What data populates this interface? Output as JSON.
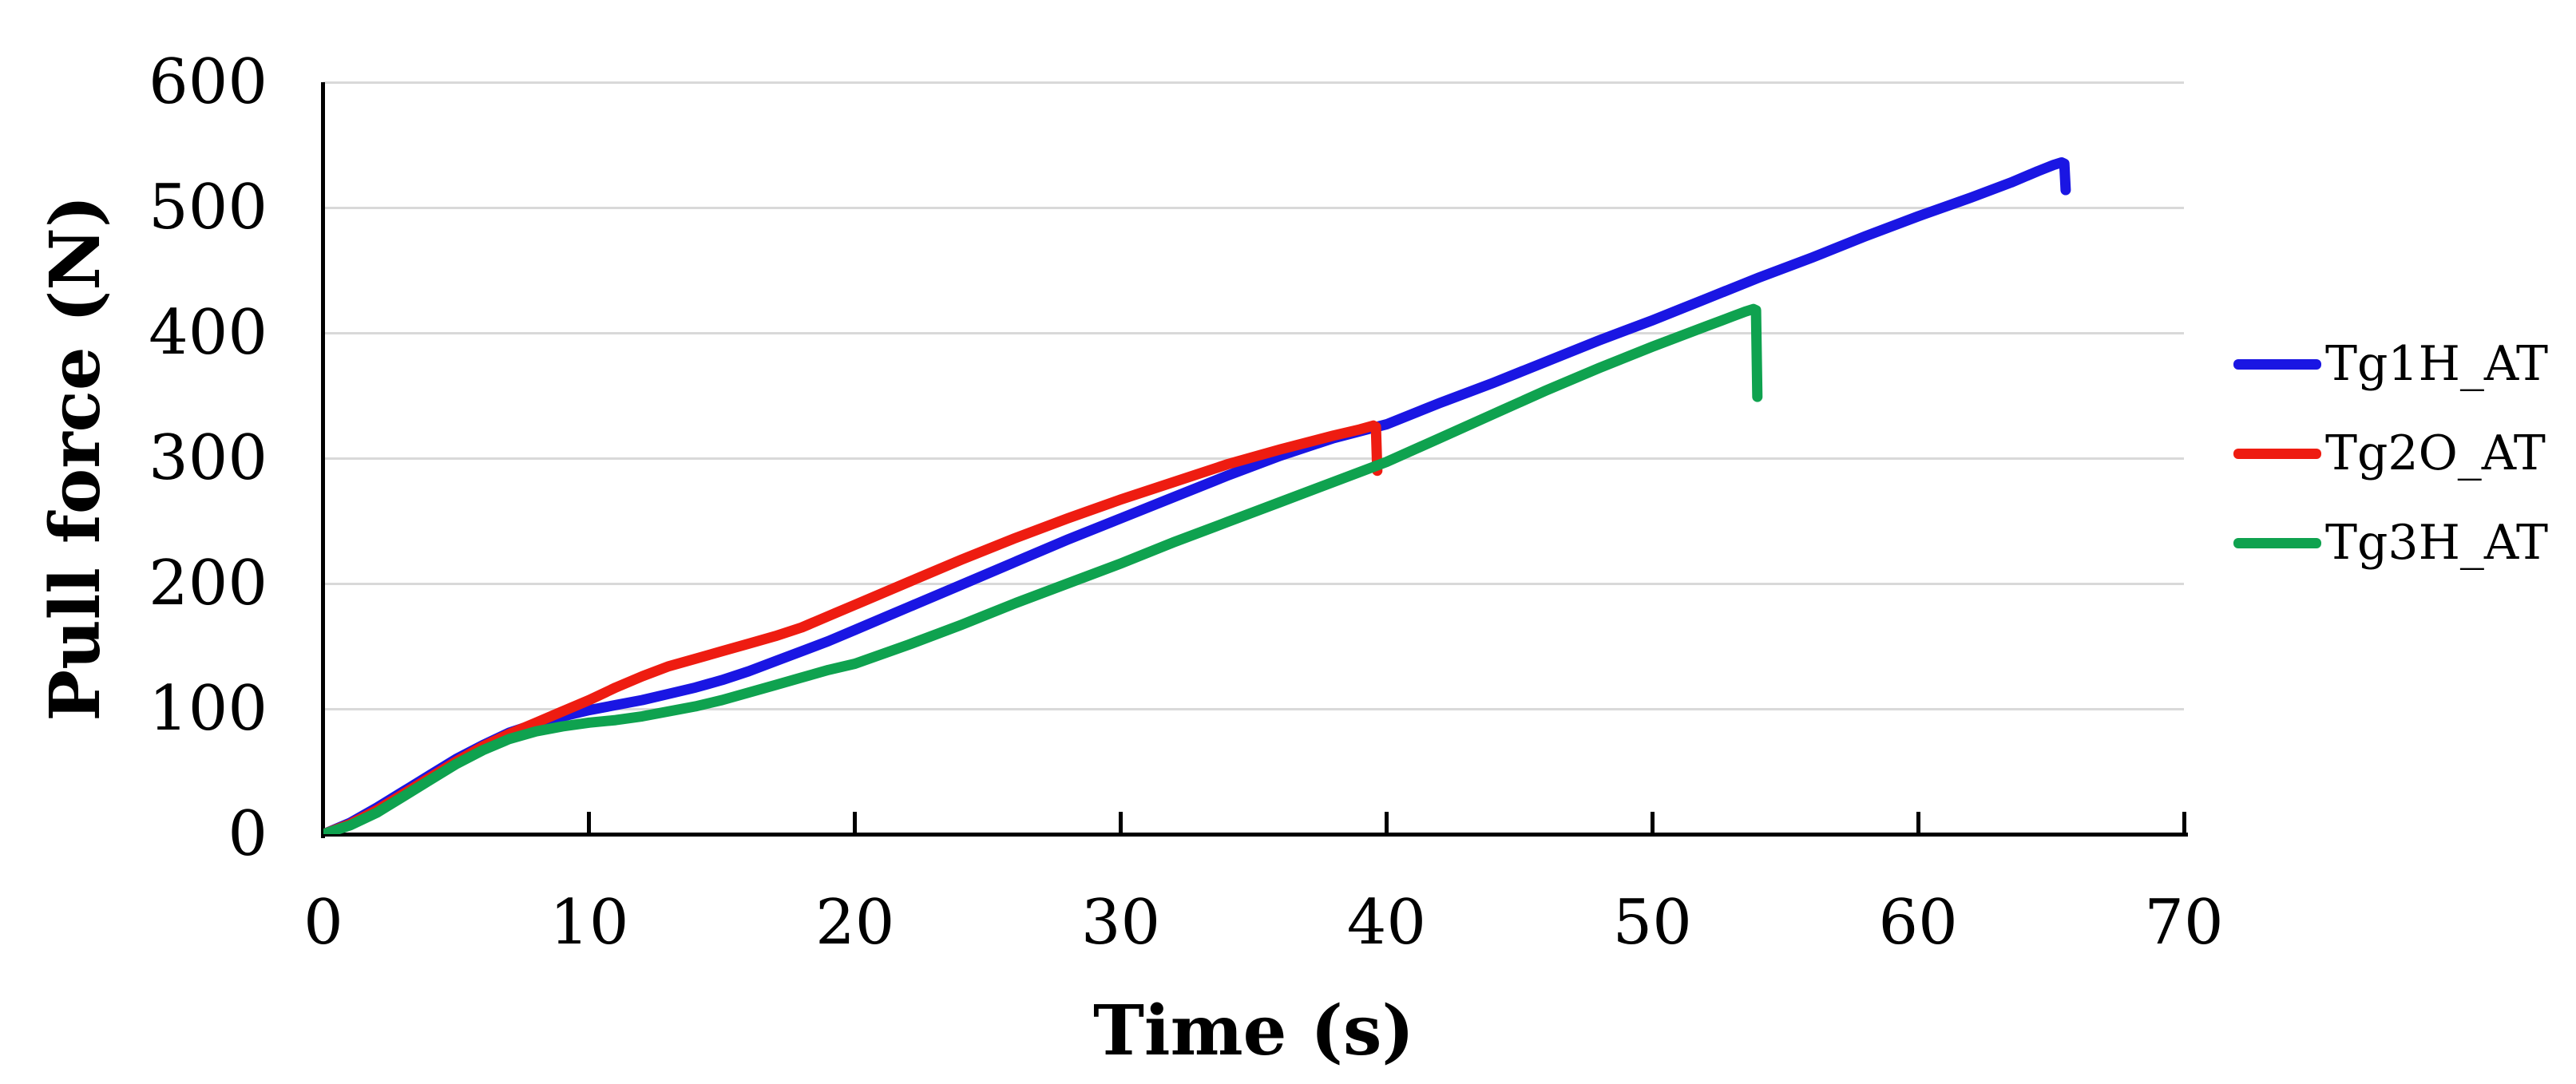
{
  "figure": {
    "background": "#FFFFFF",
    "grid_color": "#D9D9D9",
    "axis_color": "#000000"
  },
  "chart_data": {
    "type": "line",
    "title": "",
    "xlabel": "Time (s)",
    "ylabel": "Pull force (N)",
    "xlim": [
      0,
      70
    ],
    "ylim": [
      0,
      600
    ],
    "x_ticks": [
      0,
      10,
      20,
      30,
      40,
      50,
      60,
      70
    ],
    "y_ticks": [
      0,
      100,
      200,
      300,
      400,
      500,
      600
    ],
    "grid": "horizontal",
    "legend_position": "right",
    "series": [
      {
        "name": "Tg1H_AT",
        "color": "#1A16E3",
        "peak": {
          "time_s": 65.4,
          "force_n": 536
        },
        "points": [
          [
            0,
            0
          ],
          [
            1,
            9
          ],
          [
            2,
            21
          ],
          [
            3,
            34
          ],
          [
            4,
            47
          ],
          [
            5,
            60
          ],
          [
            6,
            71
          ],
          [
            7,
            81
          ],
          [
            8,
            88
          ],
          [
            9,
            94
          ],
          [
            10,
            99
          ],
          [
            11,
            103
          ],
          [
            12,
            107
          ],
          [
            13,
            112
          ],
          [
            14,
            117
          ],
          [
            15,
            123
          ],
          [
            16,
            130
          ],
          [
            17,
            138
          ],
          [
            18,
            146
          ],
          [
            19,
            154
          ],
          [
            20,
            163
          ],
          [
            22,
            181
          ],
          [
            24,
            199
          ],
          [
            26,
            217
          ],
          [
            28,
            235
          ],
          [
            30,
            252
          ],
          [
            32,
            269
          ],
          [
            34,
            286
          ],
          [
            36,
            302
          ],
          [
            38,
            316
          ],
          [
            40,
            327
          ],
          [
            42,
            344
          ],
          [
            44,
            360
          ],
          [
            46,
            377
          ],
          [
            48,
            394
          ],
          [
            50,
            410
          ],
          [
            52,
            427
          ],
          [
            54,
            444
          ],
          [
            56,
            460
          ],
          [
            58,
            477
          ],
          [
            60,
            493
          ],
          [
            62,
            508
          ],
          [
            63.5,
            520
          ],
          [
            64.5,
            529
          ],
          [
            65.1,
            534
          ],
          [
            65.4,
            536
          ],
          [
            65.5,
            535
          ],
          [
            65.55,
            514
          ]
        ]
      },
      {
        "name": "Tg2O_AT",
        "color": "#EE1C11",
        "peak": {
          "time_s": 39.5,
          "force_n": 326
        },
        "points": [
          [
            0,
            0
          ],
          [
            1,
            8
          ],
          [
            2,
            19
          ],
          [
            3,
            32
          ],
          [
            4,
            45
          ],
          [
            5,
            58
          ],
          [
            6,
            70
          ],
          [
            7,
            80
          ],
          [
            8,
            89
          ],
          [
            9,
            98
          ],
          [
            10,
            107
          ],
          [
            11,
            117
          ],
          [
            12,
            126
          ],
          [
            13,
            134
          ],
          [
            14,
            140
          ],
          [
            15,
            146
          ],
          [
            16,
            152
          ],
          [
            17,
            158
          ],
          [
            18,
            165
          ],
          [
            19,
            174
          ],
          [
            20,
            183
          ],
          [
            22,
            201
          ],
          [
            24,
            219
          ],
          [
            26,
            236
          ],
          [
            28,
            252
          ],
          [
            30,
            267
          ],
          [
            32,
            281
          ],
          [
            34,
            295
          ],
          [
            36,
            307
          ],
          [
            38,
            318
          ],
          [
            39,
            323
          ],
          [
            39.5,
            326
          ],
          [
            39.6,
            325
          ],
          [
            39.65,
            290
          ]
        ]
      },
      {
        "name": "Tg3H_AT",
        "color": "#0FA24F",
        "peak": {
          "time_s": 53.8,
          "force_n": 419
        },
        "points": [
          [
            0,
            0
          ],
          [
            1,
            7
          ],
          [
            2,
            17
          ],
          [
            3,
            30
          ],
          [
            4,
            43
          ],
          [
            5,
            56
          ],
          [
            6,
            67
          ],
          [
            7,
            76
          ],
          [
            8,
            82
          ],
          [
            9,
            86
          ],
          [
            10,
            89
          ],
          [
            11,
            91
          ],
          [
            12,
            94
          ],
          [
            13,
            98
          ],
          [
            14,
            102
          ],
          [
            15,
            107
          ],
          [
            16,
            113
          ],
          [
            17,
            119
          ],
          [
            18,
            125
          ],
          [
            19,
            131
          ],
          [
            20,
            136
          ],
          [
            22,
            151
          ],
          [
            24,
            167
          ],
          [
            26,
            184
          ],
          [
            28,
            200
          ],
          [
            30,
            216
          ],
          [
            32,
            233
          ],
          [
            34,
            249
          ],
          [
            36,
            265
          ],
          [
            38,
            281
          ],
          [
            40,
            297
          ],
          [
            42,
            316
          ],
          [
            44,
            335
          ],
          [
            46,
            354
          ],
          [
            48,
            372
          ],
          [
            50,
            389
          ],
          [
            51,
            397
          ],
          [
            52,
            405
          ],
          [
            53,
            413
          ],
          [
            53.5,
            417
          ],
          [
            53.8,
            419
          ],
          [
            53.9,
            418
          ],
          [
            53.95,
            349
          ]
        ]
      }
    ]
  }
}
